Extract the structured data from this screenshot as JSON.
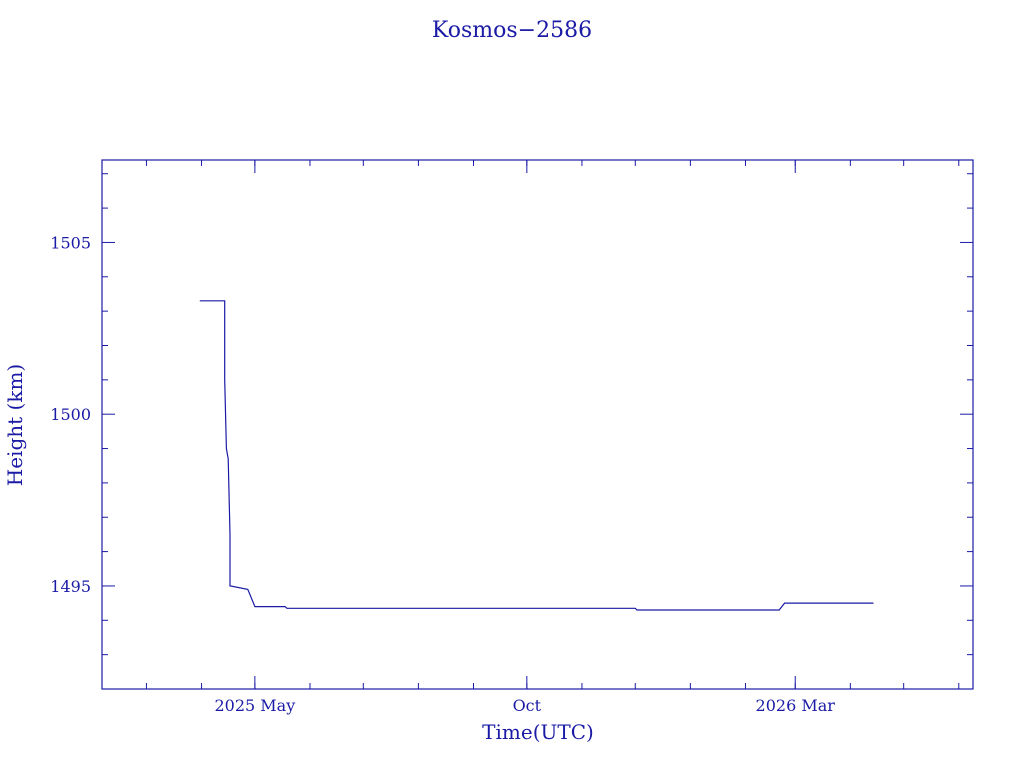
{
  "chart_data": {
    "type": "line",
    "title": "Kosmos−2586",
    "xlabel": "Time(UTC)",
    "ylabel": "Height (km)",
    "xlim": [
      "2025-02-04",
      "2026-06-09"
    ],
    "ylim": [
      1492,
      1507.4
    ],
    "x_ticks": [
      {
        "date": "2025-05-01",
        "label": "2025 May"
      },
      {
        "date": "2025-10-01",
        "label": "Oct"
      },
      {
        "date": "2026-03-01",
        "label": "2026 Mar"
      }
    ],
    "y_ticks": [
      1495,
      1500,
      1505
    ],
    "grid": false,
    "series": [
      {
        "points": [
          {
            "x": "2025-03-31",
            "y": 1503.3
          },
          {
            "x": "2025-04-14",
            "y": 1503.3
          },
          {
            "x": "2025-04-14",
            "y": 1501.0
          },
          {
            "x": "2025-04-15",
            "y": 1499.0
          },
          {
            "x": "2025-04-16",
            "y": 1498.7
          },
          {
            "x": "2025-04-17",
            "y": 1496.5
          },
          {
            "x": "2025-04-17",
            "y": 1495.0
          },
          {
            "x": "2025-04-27",
            "y": 1494.9
          },
          {
            "x": "2025-05-01",
            "y": 1494.4
          },
          {
            "x": "2025-05-18",
            "y": 1494.4
          },
          {
            "x": "2025-05-19",
            "y": 1494.35
          },
          {
            "x": "2025-12-01",
            "y": 1494.35
          },
          {
            "x": "2025-12-02",
            "y": 1494.3
          },
          {
            "x": "2026-02-20",
            "y": 1494.3
          },
          {
            "x": "2026-02-23",
            "y": 1494.5
          },
          {
            "x": "2026-04-14",
            "y": 1494.5
          }
        ]
      }
    ]
  }
}
